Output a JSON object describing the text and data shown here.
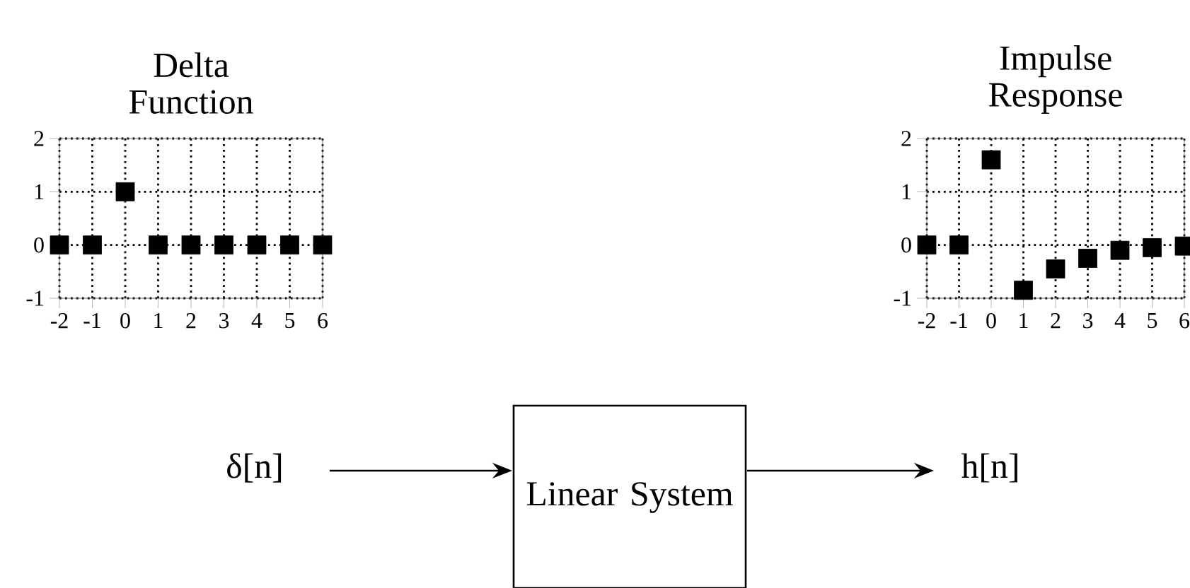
{
  "chart_data": [
    {
      "type": "scatter",
      "title": "Delta Function",
      "x": [
        -2,
        -1,
        0,
        1,
        2,
        3,
        4,
        5,
        6
      ],
      "values": [
        0,
        0,
        1,
        0,
        0,
        0,
        0,
        0,
        0
      ],
      "color": "#000000",
      "marker": "square",
      "grid": true,
      "xlim": [
        -2,
        6
      ],
      "ylim": [
        -1,
        2
      ],
      "xticks": [
        -2,
        -1,
        0,
        1,
        2,
        3,
        4,
        5,
        6
      ],
      "yticks": [
        -1,
        0,
        1,
        2
      ]
    },
    {
      "type": "scatter",
      "title": "Impulse Response",
      "x": [
        -2,
        -1,
        0,
        1,
        2,
        3,
        4,
        5,
        6
      ],
      "values": [
        0,
        0,
        1.6,
        -0.85,
        -0.45,
        -0.25,
        -0.1,
        -0.05,
        -0.02
      ],
      "color": "#000000",
      "marker": "square",
      "grid": true,
      "xlim": [
        -2,
        6
      ],
      "ylim": [
        -1,
        2
      ],
      "xticks": [
        -2,
        -1,
        0,
        1,
        2,
        3,
        4,
        5,
        6
      ],
      "yticks": [
        -1,
        0,
        1,
        2
      ]
    },
    {
      "type": "other",
      "annotations": [
        "δ[n]",
        "Linear System",
        "h[n]"
      ]
    }
  ]
}
